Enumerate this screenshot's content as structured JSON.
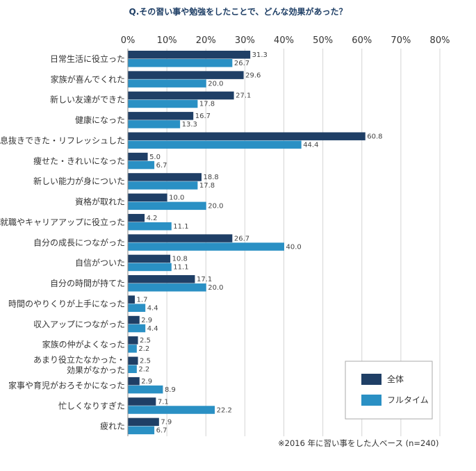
{
  "chart_data": {
    "type": "bar",
    "orientation": "horizontal",
    "title": "Q.その習い事や勉強をしたことで、どんな効果があった？",
    "xlabel": "",
    "ylabel": "",
    "xlim": [
      0,
      80
    ],
    "x_ticks": [
      "0%",
      "10%",
      "20%",
      "30%",
      "40%",
      "50%",
      "60%",
      "70%",
      "80%"
    ],
    "grid": true,
    "legend_position": "bottom-right",
    "categories": [
      "日常生活に役立った",
      "家族が喜んでくれた",
      "新しい友達ができた",
      "健康になった",
      "息抜きできた・リフレッシュした",
      "痩せた・きれいになった",
      "新しい能力が身についた",
      "資格が取れた",
      "就職やキャリアアップに役立った",
      "自分の成長につながった",
      "自信がついた",
      "自分の時間が持てた",
      "時間のやりくりが上手になった",
      "収入アップにつながった",
      "家族の仲がよくなった",
      [
        "あまり役立たなかった・",
        "効果がなかった"
      ],
      "家事や育児がおろそかになった",
      "忙しくなりすぎた",
      "疲れた"
    ],
    "series": [
      {
        "name": "全体",
        "color": "#1f3f66",
        "values": [
          31.3,
          29.6,
          27.1,
          16.7,
          60.8,
          5.0,
          18.8,
          10.0,
          4.2,
          26.7,
          10.8,
          17.1,
          1.7,
          2.9,
          2.5,
          2.5,
          2.9,
          7.1,
          7.9
        ],
        "labels": [
          "31.3",
          "29.6",
          "27.1",
          "16.7",
          "60.8",
          "5.0",
          "18.8",
          "10.0",
          "4.2",
          "26.7",
          "10.8",
          "17.1",
          "1.7",
          "2.9",
          "2.5",
          "2.5",
          "2.9",
          "7.1",
          "7.9"
        ]
      },
      {
        "name": "フルタイム",
        "color": "#2a90c4",
        "values": [
          26.7,
          20.0,
          17.8,
          13.3,
          44.4,
          6.7,
          17.8,
          20.0,
          11.1,
          40.0,
          11.1,
          20.0,
          4.4,
          4.4,
          2.2,
          2.2,
          8.9,
          22.2,
          6.7
        ],
        "labels": [
          "26.7",
          "20.0",
          "17.8",
          "13.3",
          "44.4",
          "6.7",
          "17.8",
          "20.0",
          "11.1",
          "40.0",
          "11.1",
          "20.0",
          "4.4",
          "4.4",
          "2.2",
          "2.2",
          "8.9",
          "22.2",
          "6.7"
        ]
      }
    ],
    "footnote": "※2016 年に習い事をした人ベース (n=240)"
  }
}
